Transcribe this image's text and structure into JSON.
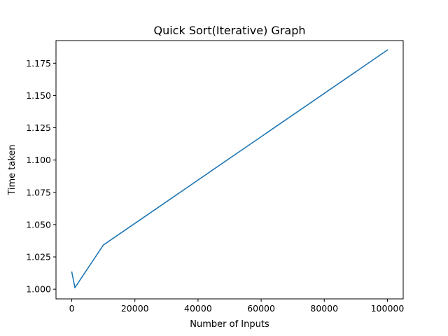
{
  "chart_data": {
    "type": "line",
    "title": "Quick Sort(Iterative) Graph",
    "xlabel": "Number of Inputs",
    "ylabel": "Time taken",
    "xlim": [
      -5000,
      105000
    ],
    "ylim": [
      0.9925,
      1.1925
    ],
    "xticks": [
      0,
      20000,
      40000,
      60000,
      80000,
      100000
    ],
    "xtick_labels": [
      "0",
      "20000",
      "40000",
      "60000",
      "80000",
      "100000"
    ],
    "yticks": [
      1.0,
      1.025,
      1.05,
      1.075,
      1.1,
      1.125,
      1.15,
      1.175
    ],
    "ytick_labels": [
      "1.000",
      "1.025",
      "1.050",
      "1.075",
      "1.100",
      "1.125",
      "1.150",
      "1.175"
    ],
    "grid": false,
    "series": [
      {
        "x": [
          10,
          1000,
          10000,
          100000
        ],
        "y": [
          1.0133,
          1.0012,
          1.0342,
          1.1852
        ],
        "color": "#1f77b4"
      }
    ]
  }
}
